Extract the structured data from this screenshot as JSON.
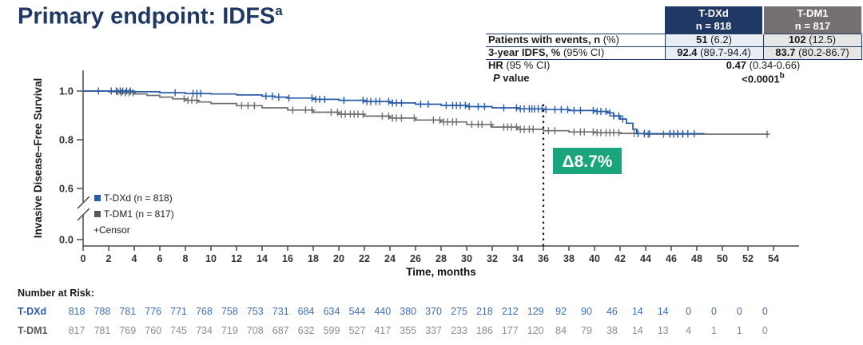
{
  "title": {
    "text": "Primary endpoint: IDFS",
    "sup": "a",
    "color": "#1F3864"
  },
  "summary_table": {
    "columns": [
      {
        "name": "T-DXd",
        "n": "n = 818",
        "bg": "#1F3864"
      },
      {
        "name": "T-DM1",
        "n": "n = 817",
        "bg": "#767171"
      }
    ],
    "cell_bg": [
      "#E9EDF5",
      "#E7E6E6"
    ],
    "border_color": "#1F3864",
    "rows": [
      {
        "label_bold": "Patients with events, n",
        "label_rest": " (%)",
        "cells": [
          {
            "bold": "51",
            "rest": " (6.2)"
          },
          {
            "bold": "102",
            "rest": " (12.5)"
          }
        ]
      },
      {
        "label_bold": "3-year IDFS, %",
        "label_rest": " (95% CI)",
        "cells": [
          {
            "bold": "92.4",
            "rest": " (89.7-94.4)"
          },
          {
            "bold": "83.7",
            "rest": " (80.2-86.7)"
          }
        ]
      },
      {
        "label_bold": "HR",
        "label_rest": " (95 % CI)",
        "span_value": {
          "bold": "0.47",
          "rest": " (0.34-0.66)"
        }
      },
      {
        "label_italic_prefix": "P",
        "label_bold": " value",
        "no_top": true,
        "indent": true,
        "span_value": {
          "bold": "<0.0001",
          "sup": "b"
        }
      }
    ]
  },
  "chart_data": {
    "type": "line",
    "subtype": "kaplan_meier_step",
    "title": "",
    "xlabel": "Time, months",
    "ylabel": "Invasive Disease–Free Survival",
    "xlim": [
      0,
      54
    ],
    "ylim_shown": [
      0.0,
      1.0
    ],
    "y_axis_break_between": [
      0.0,
      0.6
    ],
    "grid": false,
    "axis_color": "#4a4a4a",
    "tick_label_color": "#333333",
    "xticks": [
      0,
      2,
      4,
      6,
      8,
      10,
      12,
      14,
      16,
      18,
      20,
      22,
      24,
      26,
      28,
      30,
      32,
      34,
      36,
      38,
      40,
      42,
      44,
      46,
      48,
      50,
      52,
      54
    ],
    "yticks": [
      {
        "label": "1.0",
        "value": 1.0
      },
      {
        "label": "0.8",
        "value": 0.8
      },
      {
        "label": "0.6",
        "value": 0.6
      },
      {
        "label": "0.0",
        "value": 0.0,
        "below_break": true
      }
    ],
    "legend": [
      {
        "marker": "square",
        "color": "#2A5CA8",
        "label": "T-DXd (n = 818)"
      },
      {
        "marker": "square",
        "color": "#595959",
        "label": "T-DM1 (n = 817)"
      },
      {
        "marker": "none",
        "label": "+Censor"
      }
    ],
    "legend_position": "lower-left-inside",
    "series": [
      {
        "name": "T-DXd",
        "color": "#2A5CA8",
        "steps": [
          [
            0,
            1.0
          ],
          [
            3,
            1.0
          ],
          [
            4,
            0.997
          ],
          [
            6,
            0.993
          ],
          [
            8,
            0.99
          ],
          [
            10,
            0.988
          ],
          [
            12,
            0.984
          ],
          [
            14,
            0.979
          ],
          [
            15,
            0.975
          ],
          [
            16,
            0.971
          ],
          [
            18,
            0.966
          ],
          [
            20,
            0.962
          ],
          [
            22,
            0.957
          ],
          [
            24,
            0.951
          ],
          [
            26,
            0.946
          ],
          [
            28,
            0.941
          ],
          [
            30,
            0.936
          ],
          [
            32,
            0.931
          ],
          [
            34,
            0.927
          ],
          [
            36,
            0.924
          ],
          [
            38,
            0.92
          ],
          [
            40,
            0.916
          ],
          [
            41,
            0.91
          ],
          [
            41.5,
            0.898
          ],
          [
            42,
            0.885
          ],
          [
            42.5,
            0.868
          ],
          [
            43,
            0.843
          ],
          [
            43.3,
            0.825
          ],
          [
            48.6,
            0.825
          ]
        ],
        "censor_months": [
          1.2,
          2.2,
          2.6,
          2.9,
          3.1,
          3.4,
          3.7,
          7.2,
          8.6,
          8.9,
          9.2,
          14.3,
          14.8,
          15.3,
          16.1,
          17.9,
          18.2,
          18.5,
          18.9,
          20.4,
          21.9,
          22.2,
          22.5,
          22.9,
          23.2,
          23.9,
          24.2,
          24.5,
          24.9,
          26.4,
          27.0,
          28.4,
          28.9,
          29.2,
          29.5,
          29.9,
          30.2,
          30.9,
          31.4,
          32.9,
          33.9,
          34.2,
          34.5,
          34.9,
          35.1,
          35.3,
          35.6,
          35.9,
          36.2,
          36.9,
          37.4,
          37.9,
          38.4,
          38.9,
          39.9,
          40.2,
          40.5,
          40.9,
          41.2,
          41.5,
          41.9,
          42.2,
          43.4,
          43.9,
          44.3,
          45.9,
          46.2,
          46.5,
          46.9,
          47.3,
          47.8
        ]
      },
      {
        "name": "T-DM1",
        "color": "#6E6E6E",
        "steps": [
          [
            0,
            1.0
          ],
          [
            2,
            0.997
          ],
          [
            3,
            0.993
          ],
          [
            4,
            0.988
          ],
          [
            5,
            0.982
          ],
          [
            6,
            0.975
          ],
          [
            7,
            0.968
          ],
          [
            8,
            0.962
          ],
          [
            9,
            0.955
          ],
          [
            10,
            0.949
          ],
          [
            12,
            0.94
          ],
          [
            14,
            0.931
          ],
          [
            16,
            0.922
          ],
          [
            18,
            0.913
          ],
          [
            20,
            0.905
          ],
          [
            22,
            0.897
          ],
          [
            24,
            0.889
          ],
          [
            26,
            0.881
          ],
          [
            28,
            0.873
          ],
          [
            30,
            0.863
          ],
          [
            32,
            0.852
          ],
          [
            34,
            0.843
          ],
          [
            36,
            0.837
          ],
          [
            38,
            0.832
          ],
          [
            40,
            0.829
          ],
          [
            42,
            0.826
          ],
          [
            44,
            0.823
          ],
          [
            53.6,
            0.823
          ]
        ],
        "censor_months": [
          2.7,
          3.0,
          3.3,
          3.6,
          3.9,
          7.9,
          8.2,
          8.5,
          8.9,
          12.4,
          12.9,
          13.4,
          16.4,
          17.4,
          17.9,
          19.4,
          19.9,
          20.2,
          20.5,
          20.9,
          21.2,
          21.5,
          21.9,
          23.4,
          23.9,
          24.2,
          24.5,
          24.9,
          25.9,
          27.4,
          27.9,
          28.2,
          28.5,
          28.9,
          29.2,
          30.4,
          30.9,
          31.2,
          31.9,
          32.9,
          33.2,
          33.5,
          33.9,
          34.2,
          34.5,
          34.9,
          35.2,
          36.4,
          36.9,
          38.4,
          38.9,
          39.2,
          39.9,
          40.2,
          40.5,
          40.9,
          41.2,
          41.5,
          41.9,
          43.1,
          43.9,
          44.2,
          45.4,
          45.9,
          46.2,
          46.5,
          46.9,
          53.5
        ]
      }
    ],
    "reference_line": {
      "x": 36,
      "style": "dotted",
      "color": "#1a1a1a"
    },
    "annotation": {
      "label": "Δ8.7%",
      "bg": "#1AA57C",
      "text_color": "#FFFFFF",
      "at_x": 36
    }
  },
  "number_at_risk": {
    "heading": "Number at Risk:",
    "timepoints": [
      0,
      2,
      4,
      6,
      8,
      10,
      12,
      14,
      16,
      18,
      20,
      22,
      24,
      26,
      28,
      30,
      32,
      34,
      36,
      38,
      40,
      42,
      44,
      46,
      48,
      50,
      52,
      54
    ],
    "rows": [
      {
        "label": "T-DXd",
        "label_color": "#2E5FA8",
        "value_color": "#3F6FB5",
        "values": [
          818,
          788,
          781,
          776,
          771,
          768,
          758,
          753,
          731,
          684,
          634,
          544,
          440,
          380,
          370,
          275,
          218,
          212,
          129,
          92,
          90,
          46,
          14,
          14,
          0,
          0,
          0,
          0
        ]
      },
      {
        "label": "T-DM1",
        "label_color": "#595959",
        "value_color": "#8C8C8C",
        "values": [
          817,
          781,
          769,
          760,
          745,
          734,
          719,
          708,
          687,
          632,
          599,
          527,
          417,
          355,
          337,
          233,
          186,
          177,
          120,
          84,
          79,
          38,
          14,
          13,
          4,
          1,
          1,
          0
        ]
      }
    ]
  }
}
